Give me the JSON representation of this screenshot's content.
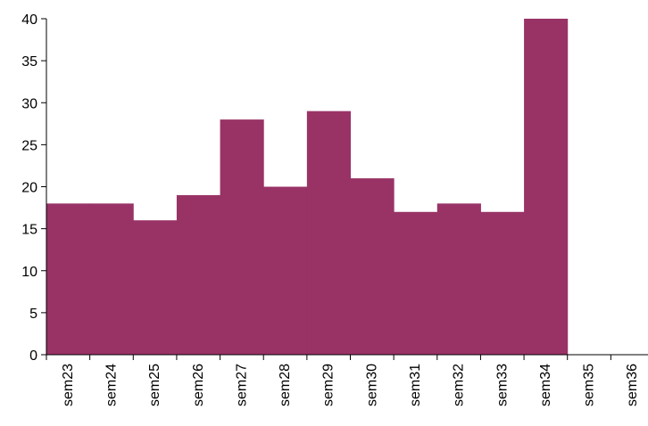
{
  "chart_data": {
    "type": "bar",
    "categories": [
      "sem23",
      "sem24",
      "sem25",
      "sem26",
      "sem27",
      "sem28",
      "sem29",
      "sem30",
      "sem31",
      "sem32",
      "sem33",
      "sem34",
      "sem35",
      "sem36"
    ],
    "values": [
      18,
      18,
      16,
      19,
      28,
      20,
      29,
      21,
      17,
      18,
      17,
      40,
      0,
      0
    ],
    "title": "",
    "xlabel": "",
    "ylabel": "",
    "ylim": [
      0,
      40
    ],
    "yticks": [
      0,
      5,
      10,
      15,
      20,
      25,
      30,
      35,
      40
    ],
    "ytick_labels": [
      "0",
      "5",
      "10",
      "15",
      "20",
      "25",
      "30",
      "35",
      "40"
    ],
    "grid": false,
    "legend": "none",
    "bar_color": "#993366",
    "axis_color": "#000000"
  }
}
